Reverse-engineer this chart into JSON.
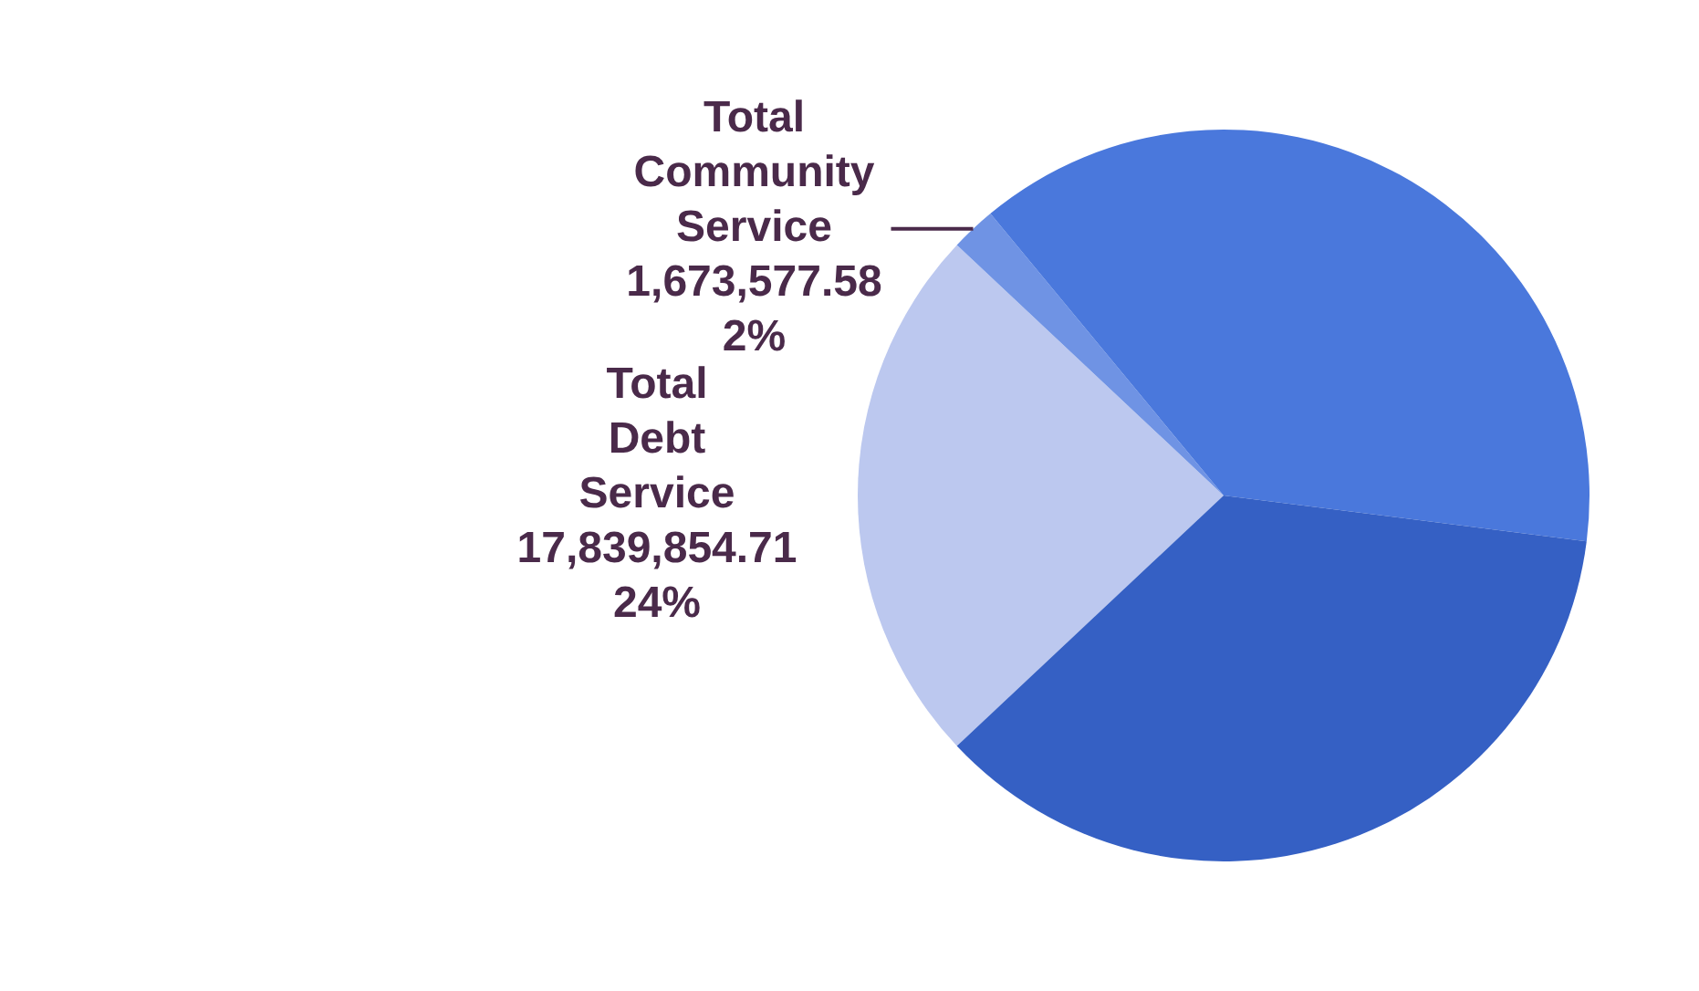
{
  "chart_data": {
    "type": "pie",
    "categories": [
      "Total Debt Service",
      "Total Community Service",
      null,
      null
    ],
    "values": [
      24,
      2,
      38,
      36
    ],
    "colors": [
      "#bcc8ef",
      "#6f93e4",
      "#4a78dc",
      "#3560c4"
    ],
    "value_labels": [
      "17,839,854.71\n24%",
      "1,673,577.58\n2%",
      null,
      null
    ],
    "legend": false
  }
}
